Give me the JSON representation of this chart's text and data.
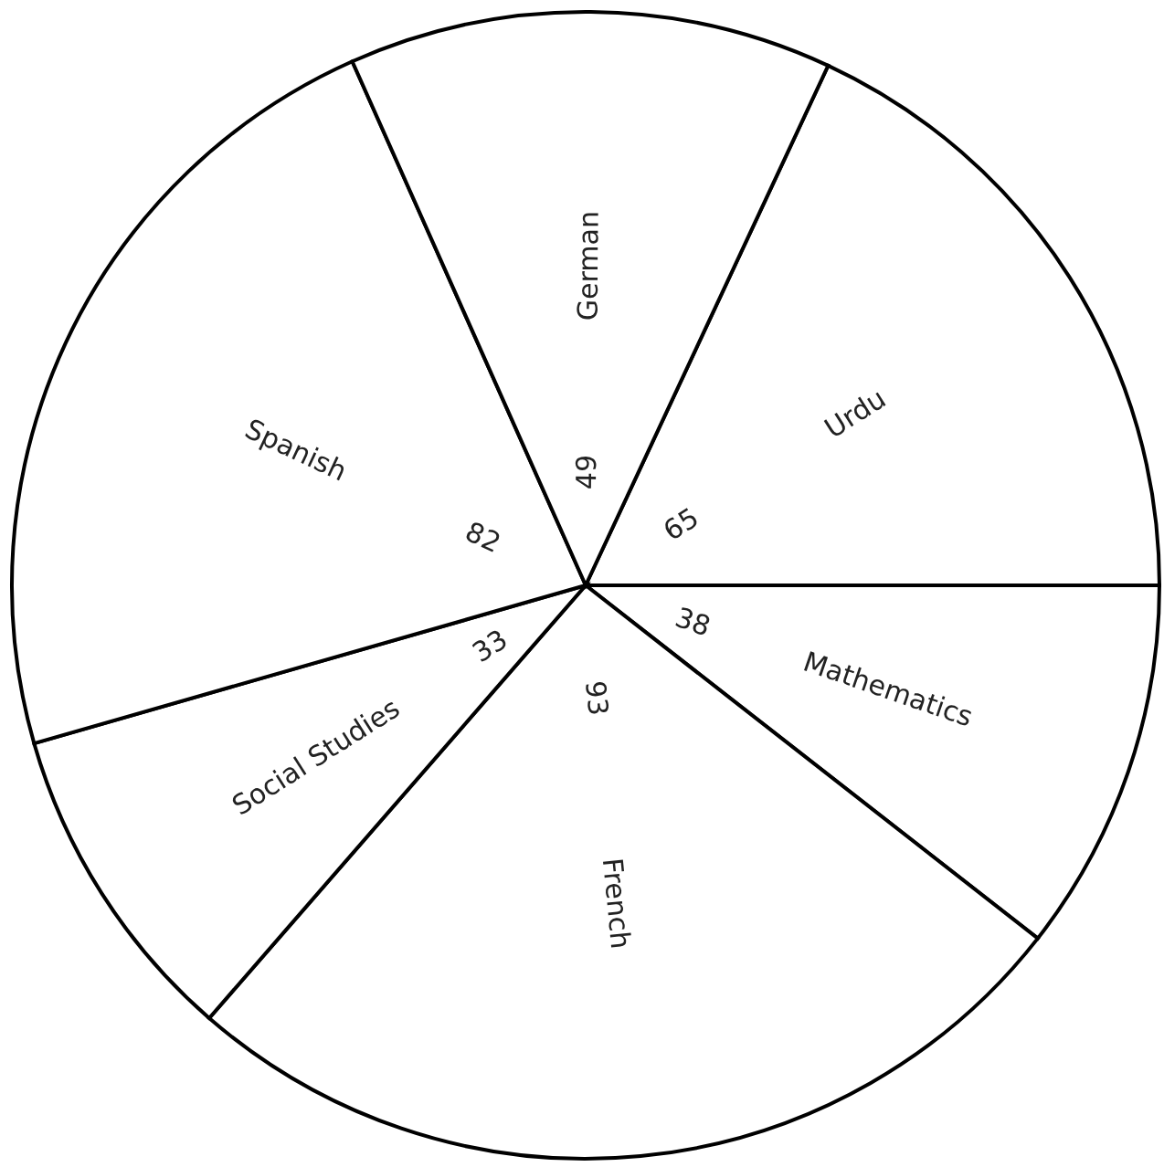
{
  "chart_data": {
    "type": "pie",
    "categories": [
      "Urdu",
      "Mathematics",
      "French",
      "Social Studies",
      "Spanish",
      "German"
    ],
    "values": [
      65,
      38,
      93,
      33,
      82,
      49
    ],
    "colors": [
      "#ffffff",
      "#ffffff",
      "#ffffff",
      "#ffffff",
      "#ffffff",
      "#ffffff"
    ],
    "data_labels": true,
    "legend": false
  }
}
